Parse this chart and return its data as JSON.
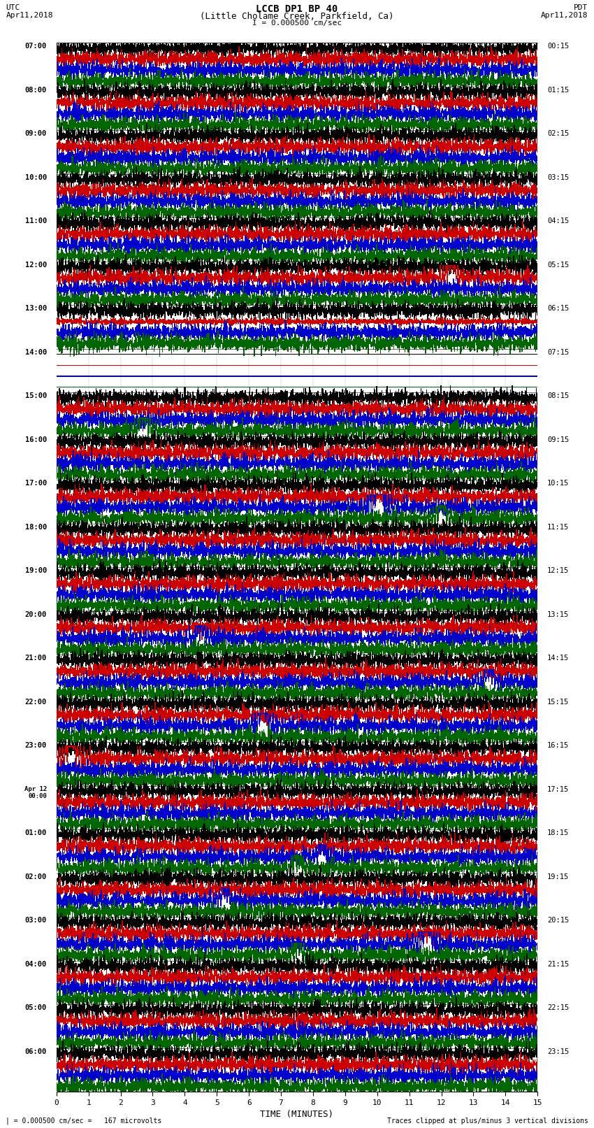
{
  "title_line1": "LCCB DP1 BP 40",
  "title_line2": "(Little Cholame Creek, Parkfield, Ca)",
  "scale_label": "I = 0.000500 cm/sec",
  "left_tz": "UTC",
  "left_date": "Apr11,2018",
  "right_tz": "PDT",
  "right_date": "Apr11,2018",
  "xlabel": "TIME (MINUTES)",
  "bottom_left": "| = 0.000500 cm/sec =   167 microvolts",
  "bottom_right": "Traces clipped at plus/minus 3 vertical divisions",
  "background_color": "#ffffff",
  "trace_colors": [
    "#000000",
    "#cc0000",
    "#0000cc",
    "#006600"
  ],
  "fig_width": 8.5,
  "fig_height": 16.13,
  "left_labels": [
    "07:00",
    "08:00",
    "09:00",
    "10:00",
    "11:00",
    "12:00",
    "13:00",
    "14:00",
    "15:00",
    "16:00",
    "17:00",
    "18:00",
    "19:00",
    "20:00",
    "21:00",
    "22:00",
    "23:00",
    "Apr12\n00:00",
    "01:00",
    "02:00",
    "03:00",
    "04:00",
    "05:00",
    "06:00"
  ],
  "right_labels": [
    "00:15",
    "01:15",
    "02:15",
    "03:15",
    "04:15",
    "05:15",
    "06:15",
    "07:15",
    "08:15",
    "09:15",
    "10:15",
    "11:15",
    "12:15",
    "13:15",
    "14:15",
    "15:15",
    "16:15",
    "17:15",
    "18:15",
    "19:15",
    "20:15",
    "21:15",
    "22:15",
    "23:15"
  ],
  "grid_color": "#aaaaaa",
  "separator_color": "#000000"
}
